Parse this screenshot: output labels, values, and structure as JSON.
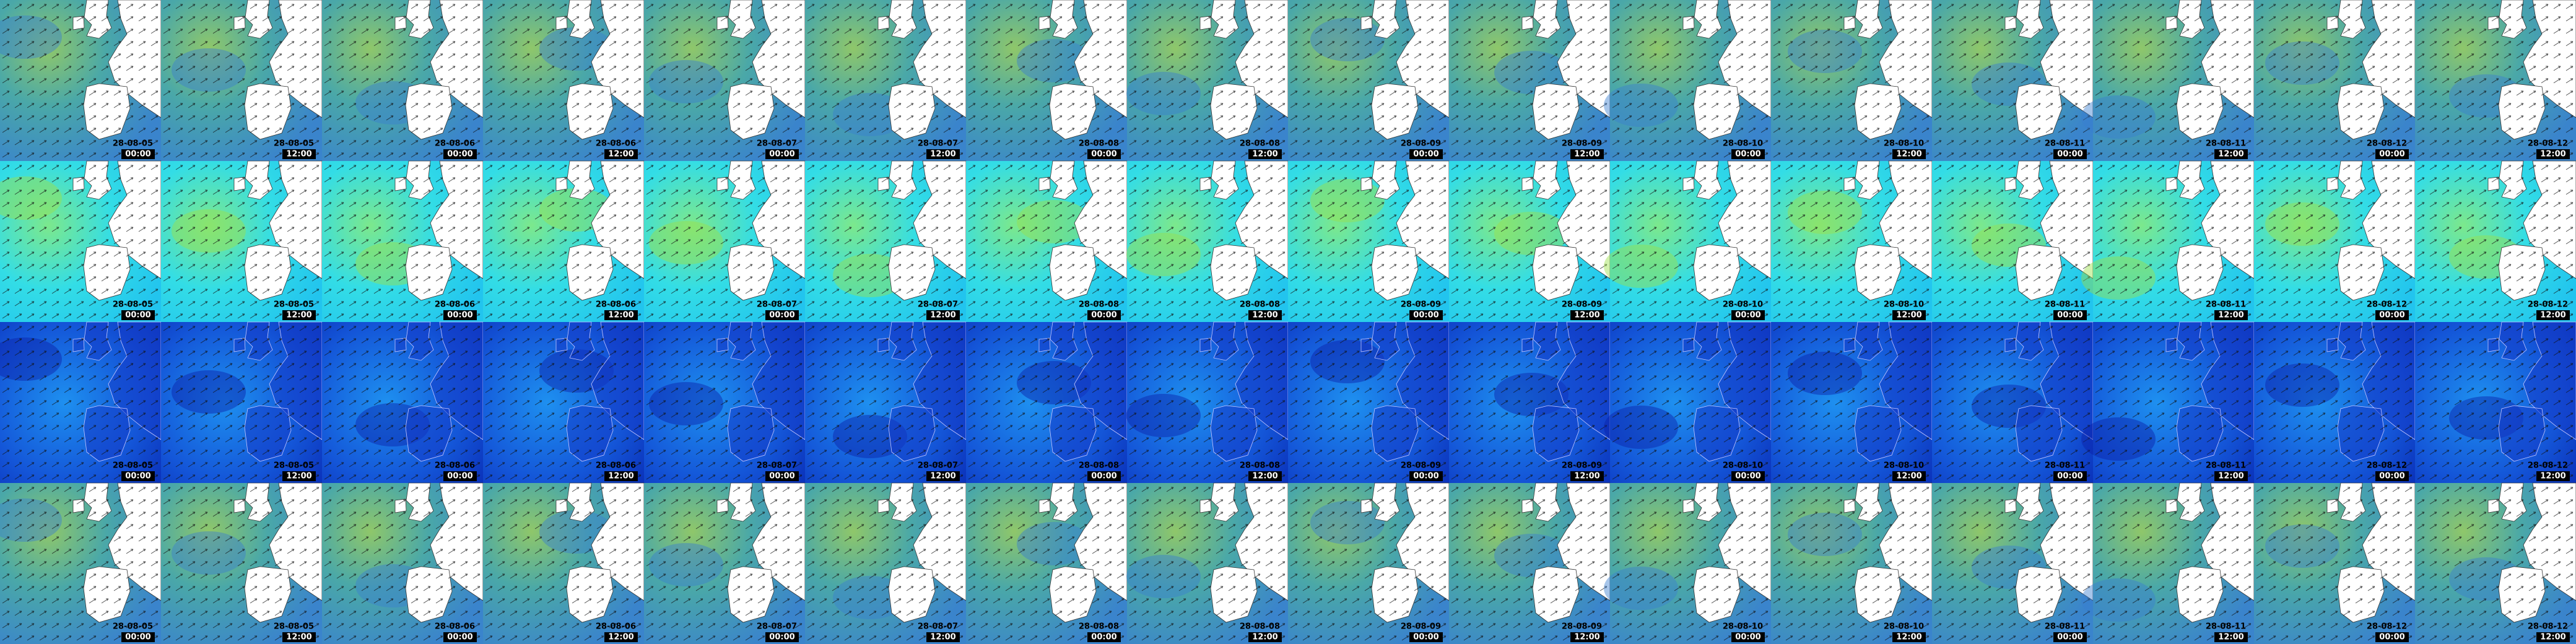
{
  "rows": [
    {
      "tiles": [
        {
          "date": "28-08-05",
          "time": "00:00"
        },
        {
          "date": "28-08-05",
          "time": "12:00"
        },
        {
          "date": "28-08-06",
          "time": "00:00"
        },
        {
          "date": "28-08-06",
          "time": "12:00"
        },
        {
          "date": "28-08-07",
          "time": "00:00"
        },
        {
          "date": "28-08-07",
          "time": "12:00"
        },
        {
          "date": "28-08-08",
          "time": "00:00"
        },
        {
          "date": "28-08-08",
          "time": "12:00"
        },
        {
          "date": "28-08-09",
          "time": "00:00"
        },
        {
          "date": "28-08-09",
          "time": "12:00"
        },
        {
          "date": "28-08-10",
          "time": "00:00"
        },
        {
          "date": "28-08-10",
          "time": "12:00"
        },
        {
          "date": "28-08-11",
          "time": "00:00"
        },
        {
          "date": "28-08-11",
          "time": "12:00"
        },
        {
          "date": "28-08-12",
          "time": "00:00"
        },
        {
          "date": "28-08-12",
          "time": "12:00"
        }
      ]
    },
    {
      "tiles": [
        {
          "date": "28-08-05",
          "time": "00:00"
        },
        {
          "date": "28-08-05",
          "time": "12:00"
        },
        {
          "date": "28-08-06",
          "time": "00:00"
        },
        {
          "date": "28-08-06",
          "time": "12:00"
        },
        {
          "date": "28-08-07",
          "time": "00:00"
        },
        {
          "date": "28-08-07",
          "time": "12:00"
        },
        {
          "date": "28-08-08",
          "time": "00:00"
        },
        {
          "date": "28-08-08",
          "time": "12:00"
        },
        {
          "date": "28-08-09",
          "time": "00:00"
        },
        {
          "date": "28-08-09",
          "time": "12:00"
        },
        {
          "date": "28-08-10",
          "time": "00:00"
        },
        {
          "date": "28-08-10",
          "time": "12:00"
        },
        {
          "date": "28-08-11",
          "time": "00:00"
        },
        {
          "date": "28-08-11",
          "time": "12:00"
        },
        {
          "date": "28-08-12",
          "time": "00:00"
        },
        {
          "date": "28-08-12",
          "time": "12:00"
        }
      ]
    },
    {
      "tiles": [
        {
          "date": "28-08-05",
          "time": "00:00"
        },
        {
          "date": "28-08-05",
          "time": "12:00"
        },
        {
          "date": "28-08-06",
          "time": "00:00"
        },
        {
          "date": "28-08-06",
          "time": "12:00"
        },
        {
          "date": "28-08-07",
          "time": "00:00"
        },
        {
          "date": "28-08-07",
          "time": "12:00"
        },
        {
          "date": "28-08-08",
          "time": "00:00"
        },
        {
          "date": "28-08-08",
          "time": "12:00"
        },
        {
          "date": "28-08-09",
          "time": "00:00"
        },
        {
          "date": "28-08-09",
          "time": "12:00"
        },
        {
          "date": "28-08-10",
          "time": "00:00"
        },
        {
          "date": "28-08-10",
          "time": "12:00"
        },
        {
          "date": "28-08-11",
          "time": "00:00"
        },
        {
          "date": "28-08-11",
          "time": "12:00"
        },
        {
          "date": "28-08-12",
          "time": "00:00"
        },
        {
          "date": "28-08-12",
          "time": "12:00"
        }
      ]
    },
    {
      "tiles": [
        {
          "date": "28-08-05",
          "time": "00:00"
        },
        {
          "date": "28-08-05",
          "time": "12:00"
        },
        {
          "date": "28-08-06",
          "time": "00:00"
        },
        {
          "date": "28-08-06",
          "time": "12:00"
        },
        {
          "date": "28-08-07",
          "time": "00:00"
        },
        {
          "date": "28-08-07",
          "time": "12:00"
        },
        {
          "date": "28-08-08",
          "time": "00:00"
        },
        {
          "date": "28-08-08",
          "time": "12:00"
        },
        {
          "date": "28-08-09",
          "time": "00:00"
        },
        {
          "date": "28-08-09",
          "time": "12:00"
        },
        {
          "date": "28-08-10",
          "time": "00:00"
        },
        {
          "date": "28-08-10",
          "time": "12:00"
        },
        {
          "date": "28-08-11",
          "time": "00:00"
        },
        {
          "date": "28-08-11",
          "time": "12:00"
        },
        {
          "date": "28-08-12",
          "time": "00:00"
        },
        {
          "date": "28-08-12",
          "time": "12:00"
        }
      ]
    }
  ]
}
